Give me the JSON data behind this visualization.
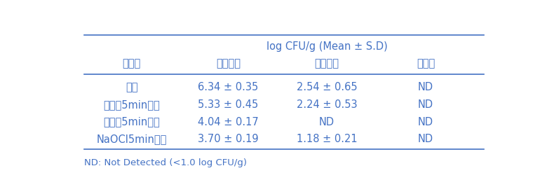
{
  "header_top": "log CFU/g (Mean ± S.D)",
  "col0_header": "시료명",
  "col1_header": "일반세균",
  "col2_header": "대장균군",
  "col3_header": "대장균",
  "rows": [
    [
      "원료",
      "6.34 ± 0.35",
      "2.54 ± 0.65",
      "ND"
    ],
    [
      "증류쉴5min침지",
      "5.33 ± 0.45",
      "2.24 ± 0.53",
      "ND"
    ],
    [
      "전해쉴5min침지",
      "4.04 ± 0.17",
      "ND",
      "ND"
    ],
    [
      "NaOCl5min침지",
      "3.70 ± 0.19",
      "1.18 ± 0.21",
      "ND"
    ]
  ],
  "footnote": "ND: Not Detected (<1.0 log CFU/g)",
  "text_color": "#4472c4",
  "line_color": "#4472c4",
  "bg_color": "#ffffff",
  "header_fontsize": 10.5,
  "cell_fontsize": 10.5,
  "footnote_fontsize": 9.5
}
